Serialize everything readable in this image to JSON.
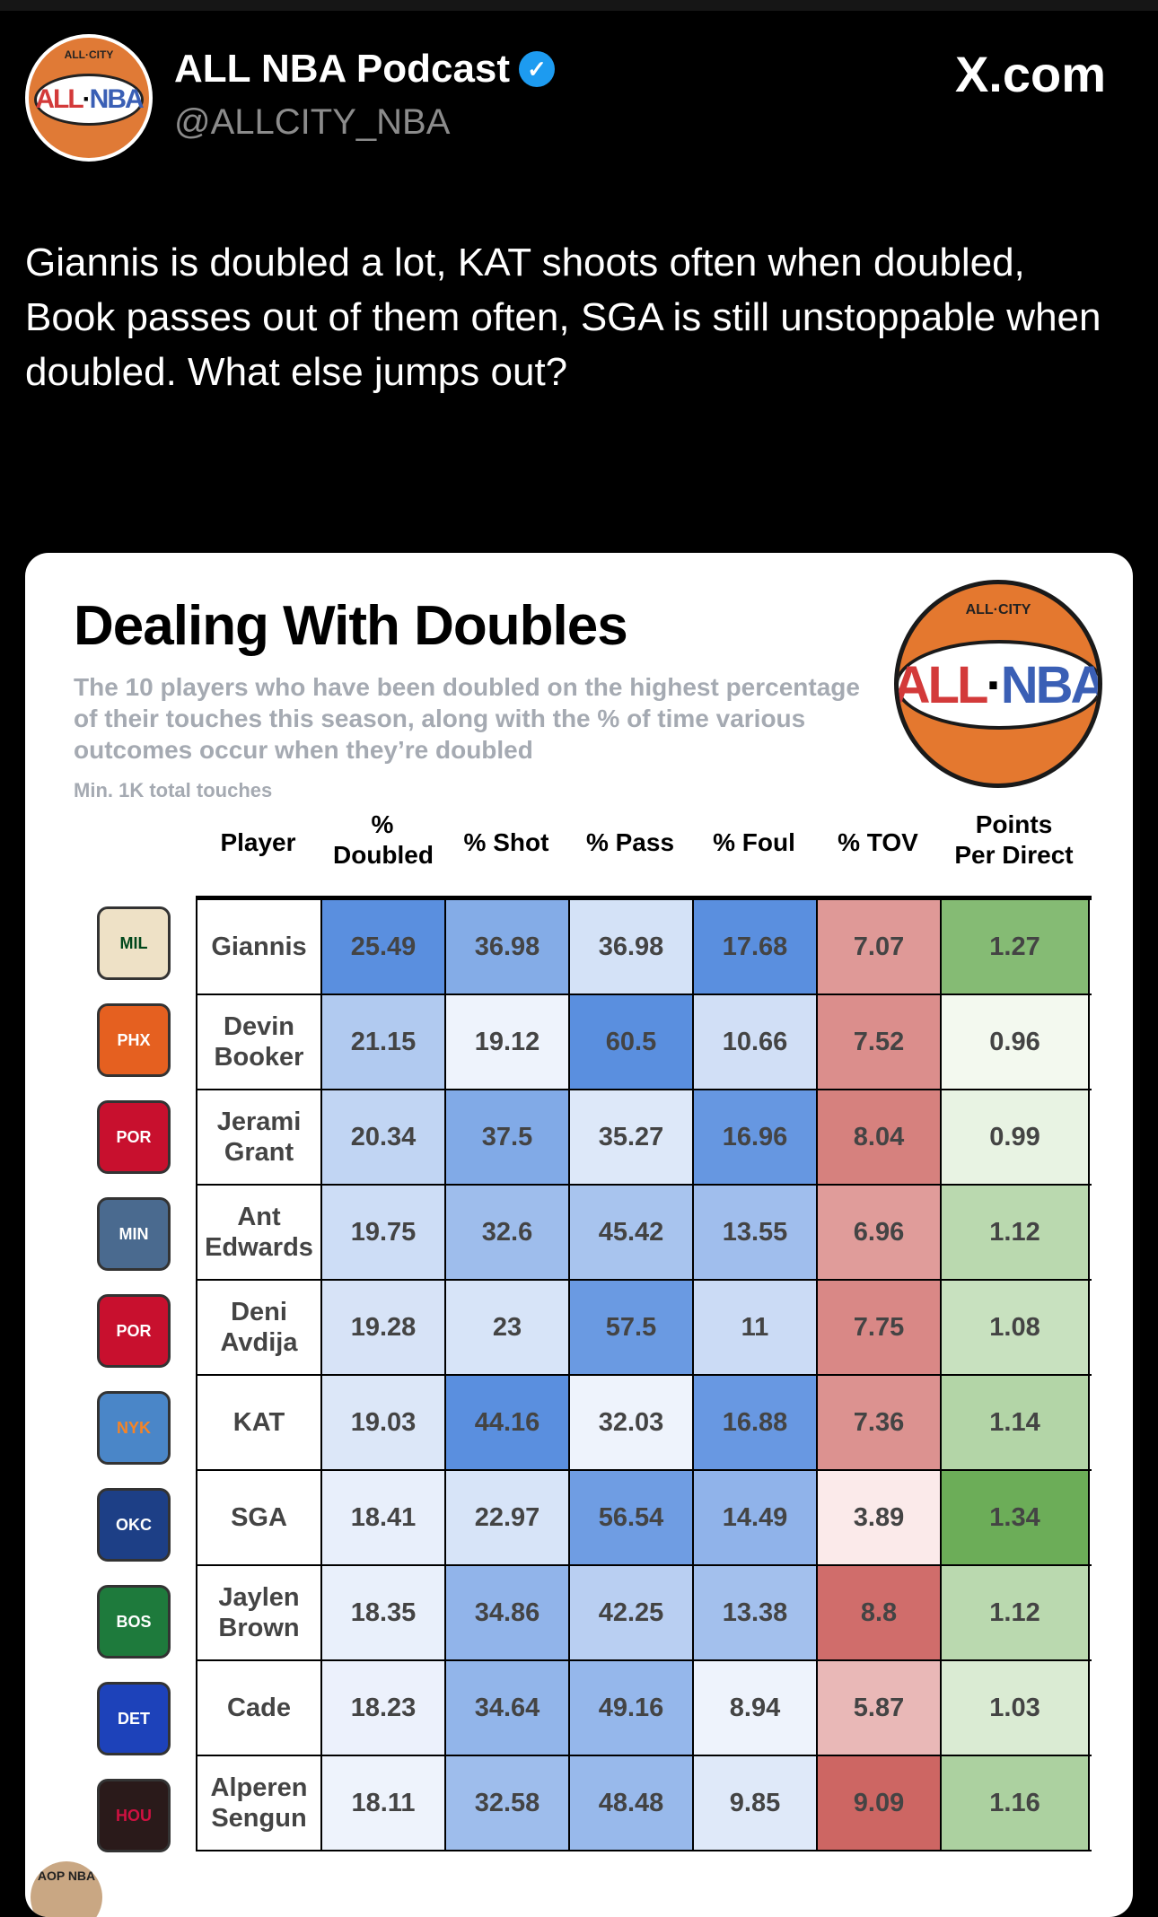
{
  "post": {
    "account_name": "ALL NBA Podcast",
    "handle": "@ALLCITY_NBA",
    "site": "X.com",
    "verified_icon": "verified-badge-icon",
    "text": "Giannis is doubled a lot, KAT shoots often when doubled, Book passes out of them often, SGA is still unstoppable when doubled. What else jumps out?"
  },
  "avatar": {
    "top_text": "ALL·CITY",
    "left": "ALL",
    "right": "NBA"
  },
  "graphic": {
    "title": "Dealing With Doubles",
    "subtitle": "The 10 players who have been doubled on the highest percentage of their touches this season, along with the % of time various outcomes occur when they’re doubled",
    "note": "Min. 1K total touches",
    "logo_top": "ALL·CITY",
    "logo_left": "ALL",
    "logo_right": "NBA",
    "watermark": "AOP NBA",
    "columns": [
      "Player",
      "% Doubled",
      "% Shot",
      "% Pass",
      "% Foul",
      "% TOV",
      "Points Per Direct"
    ],
    "colors": {
      "blue_low": "#eef3fc",
      "blue_high": "#5a8fdf",
      "red_low": "#fbeaea",
      "red_high": "#cd6663",
      "green_low": "#f3f9ef",
      "green_high": "#6cad58"
    },
    "rows": [
      {
        "team": "MIL",
        "team_color": "#eee1c6",
        "team_text": "#00471b",
        "player": "Giannis",
        "values": [
          "25.49",
          "36.98",
          "36.98",
          "17.68",
          "7.07",
          "1.27"
        ]
      },
      {
        "team": "PHX",
        "team_color": "#e56020",
        "team_text": "#fff",
        "player": "Devin Booker",
        "values": [
          "21.15",
          "19.12",
          "60.5",
          "10.66",
          "7.52",
          "0.96"
        ]
      },
      {
        "team": "POR",
        "team_color": "#c8102e",
        "team_text": "#fff",
        "player": "Jerami Grant",
        "values": [
          "20.34",
          "37.5",
          "35.27",
          "16.96",
          "8.04",
          "0.99"
        ]
      },
      {
        "team": "MIN",
        "team_color": "#4a6a8f",
        "team_text": "#fff",
        "player": "Ant Edwards",
        "values": [
          "19.75",
          "32.6",
          "45.42",
          "13.55",
          "6.96",
          "1.12"
        ]
      },
      {
        "team": "POR",
        "team_color": "#c8102e",
        "team_text": "#fff",
        "player": "Deni Avdija",
        "values": [
          "19.28",
          "23",
          "57.5",
          "11",
          "7.75",
          "1.08"
        ]
      },
      {
        "team": "NYK",
        "team_color": "#4a86c8",
        "team_text": "#f58426",
        "player": "KAT",
        "values": [
          "19.03",
          "44.16",
          "32.03",
          "16.88",
          "7.36",
          "1.14"
        ]
      },
      {
        "team": "OKC",
        "team_color": "#1d3f86",
        "team_text": "#fff",
        "player": "SGA",
        "values": [
          "18.41",
          "22.97",
          "56.54",
          "14.49",
          "3.89",
          "1.34"
        ]
      },
      {
        "team": "BOS",
        "team_color": "#1e7a3c",
        "team_text": "#fff",
        "player": "Jaylen Brown",
        "values": [
          "18.35",
          "34.86",
          "42.25",
          "13.38",
          "8.8",
          "1.12"
        ]
      },
      {
        "team": "DET",
        "team_color": "#1d42ba",
        "team_text": "#fff",
        "player": "Cade",
        "values": [
          "18.23",
          "34.64",
          "49.16",
          "8.94",
          "5.87",
          "1.03"
        ]
      },
      {
        "team": "HOU",
        "team_color": "#2a1a1a",
        "team_text": "#ce1141",
        "player": "Alperen Sengun",
        "values": [
          "18.11",
          "32.58",
          "48.48",
          "9.85",
          "9.09",
          "1.16"
        ]
      }
    ]
  }
}
